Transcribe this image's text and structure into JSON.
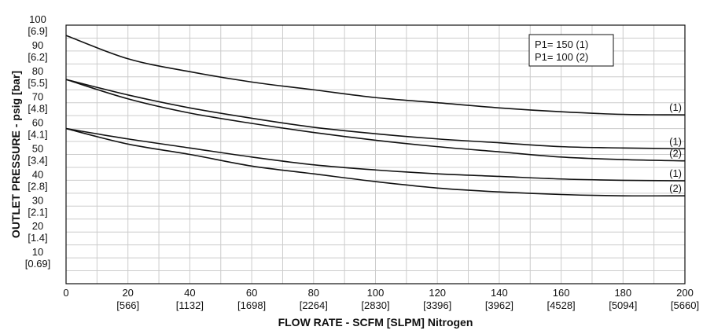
{
  "chart_data": {
    "type": "line",
    "title": "",
    "xlabel": "FLOW RATE - SCFM [SLPM] Nitrogen",
    "ylabel": "OUTLET PRESSURE - psig [bar]",
    "xlim": [
      0,
      200
    ],
    "ylim": [
      0,
      100
    ],
    "x_ticks": [
      {
        "value": 0,
        "label": "0",
        "sub": ""
      },
      {
        "value": 20,
        "label": "20",
        "sub": "[566]"
      },
      {
        "value": 40,
        "label": "40",
        "sub": "[1132]"
      },
      {
        "value": 60,
        "label": "60",
        "sub": "[1698]"
      },
      {
        "value": 80,
        "label": "80",
        "sub": "[2264]"
      },
      {
        "value": 100,
        "label": "100",
        "sub": "[2830]"
      },
      {
        "value": 120,
        "label": "120",
        "sub": "[3396]"
      },
      {
        "value": 140,
        "label": "140",
        "sub": "[3962]"
      },
      {
        "value": 160,
        "label": "160",
        "sub": "[4528]"
      },
      {
        "value": 180,
        "label": "180",
        "sub": "[5094]"
      },
      {
        "value": 200,
        "label": "200",
        "sub": "[5660]"
      }
    ],
    "y_ticks": [
      {
        "value": 10,
        "label": "10",
        "sub": "[0.69]"
      },
      {
        "value": 20,
        "label": "20",
        "sub": "[1.4]"
      },
      {
        "value": 30,
        "label": "30",
        "sub": "[2.1]"
      },
      {
        "value": 40,
        "label": "40",
        "sub": "[2.8]"
      },
      {
        "value": 50,
        "label": "50",
        "sub": "[3.4]"
      },
      {
        "value": 60,
        "label": "60",
        "sub": "[4.1]"
      },
      {
        "value": 70,
        "label": "70",
        "sub": "[4.8]"
      },
      {
        "value": 80,
        "label": "80",
        "sub": "[5.5]"
      },
      {
        "value": 90,
        "label": "90",
        "sub": "[6.2]"
      },
      {
        "value": 100,
        "label": "100",
        "sub": "[6.9]"
      }
    ],
    "grid": true,
    "legend": {
      "position": "top-right",
      "entries": [
        "P1= 150 (1)",
        "P1= 100 (2)"
      ]
    },
    "series": [
      {
        "end_label": "(1)",
        "x": [
          0,
          20,
          40,
          60,
          80,
          100,
          120,
          140,
          160,
          180,
          200
        ],
        "y": [
          96,
          87,
          82,
          78,
          75,
          72,
          70,
          68,
          66.5,
          65.5,
          65.3
        ]
      },
      {
        "end_label": "(1)",
        "x": [
          0,
          20,
          40,
          60,
          80,
          100,
          120,
          140,
          160,
          180,
          200
        ],
        "y": [
          79,
          73,
          68,
          64,
          60.5,
          58,
          56,
          54.5,
          53,
          52.5,
          52.2
        ]
      },
      {
        "end_label": "(2)",
        "x": [
          0,
          20,
          40,
          60,
          80,
          100,
          120,
          140,
          160,
          180,
          200
        ],
        "y": [
          79,
          71.5,
          66,
          62,
          58.5,
          55.5,
          53,
          51,
          49,
          48,
          47.5
        ]
      },
      {
        "end_label": "(1)",
        "x": [
          0,
          20,
          40,
          60,
          80,
          100,
          120,
          140,
          160,
          180,
          200
        ],
        "y": [
          60,
          56,
          52.5,
          49,
          46,
          44,
          42.5,
          41.5,
          40.5,
          40,
          39.8
        ]
      },
      {
        "end_label": "(2)",
        "x": [
          0,
          20,
          40,
          60,
          80,
          100,
          120,
          140,
          160,
          180,
          200
        ],
        "y": [
          60,
          54,
          50,
          45.5,
          42.5,
          39.5,
          37,
          35.5,
          34.5,
          34,
          34
        ]
      }
    ]
  },
  "colors": {
    "line": "#111111",
    "grid": "#cccccc",
    "frame": "#111111"
  }
}
